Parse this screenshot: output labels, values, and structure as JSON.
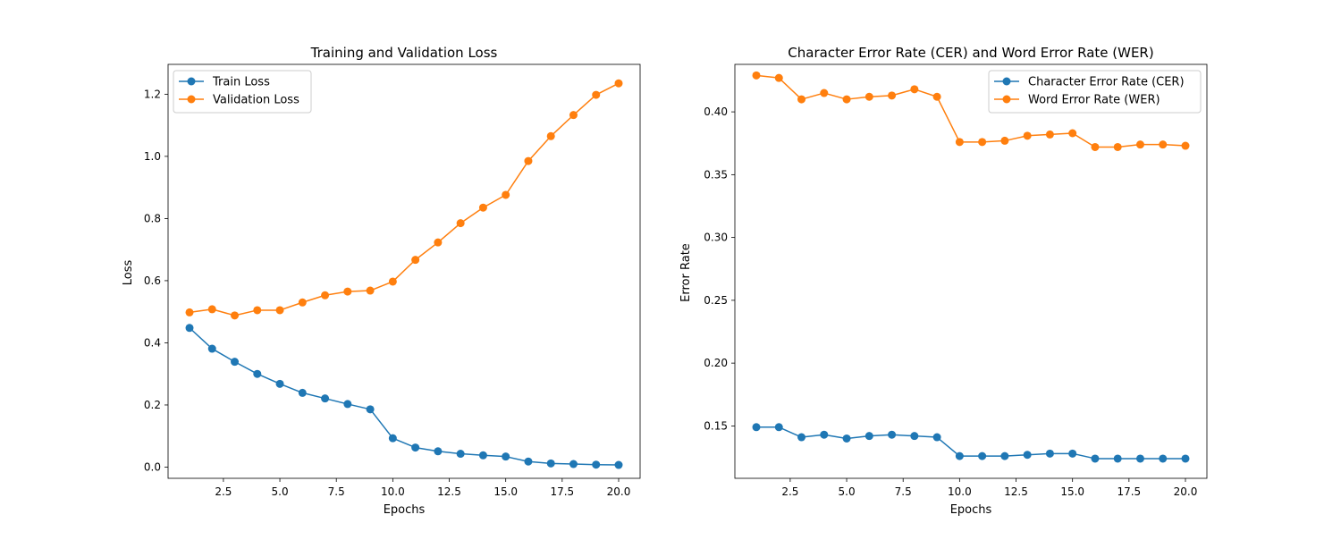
{
  "chart_data": [
    {
      "type": "line",
      "title": "Training and Validation Loss",
      "xlabel": "Epochs",
      "ylabel": "Loss",
      "xlim": [
        0.05,
        20.95
      ],
      "ylim": [
        -0.036,
        1.296
      ],
      "xticks": [
        2.5,
        5.0,
        7.5,
        10.0,
        12.5,
        15.0,
        17.5,
        20.0
      ],
      "xtick_labels": [
        "2.5",
        "5.0",
        "7.5",
        "10.0",
        "12.5",
        "15.0",
        "17.5",
        "20.0"
      ],
      "yticks": [
        0.0,
        0.2,
        0.4,
        0.6,
        0.8,
        1.0,
        1.2
      ],
      "ytick_labels": [
        "0.0",
        "0.2",
        "0.4",
        "0.6",
        "0.8",
        "1.0",
        "1.2"
      ],
      "grid": false,
      "legend_position": "upper-left",
      "x": [
        1,
        2,
        3,
        4,
        5,
        6,
        7,
        8,
        9,
        10,
        11,
        12,
        13,
        14,
        15,
        16,
        17,
        18,
        19,
        20
      ],
      "series": [
        {
          "name": "Train Loss",
          "color": "#1f77b4",
          "values": [
            0.448,
            0.381,
            0.339,
            0.3,
            0.268,
            0.239,
            0.221,
            0.203,
            0.186,
            0.093,
            0.063,
            0.051,
            0.043,
            0.038,
            0.034,
            0.018,
            0.012,
            0.01,
            0.008,
            0.007
          ]
        },
        {
          "name": "Validation Loss",
          "color": "#ff7f0e",
          "values": [
            0.498,
            0.508,
            0.488,
            0.505,
            0.505,
            0.53,
            0.553,
            0.565,
            0.568,
            0.597,
            0.667,
            0.723,
            0.785,
            0.835,
            0.876,
            0.985,
            1.065,
            1.133,
            1.198,
            1.235
          ]
        }
      ]
    },
    {
      "type": "line",
      "title": "Character Error Rate (CER) and Word Error Rate (WER)",
      "xlabel": "Epochs",
      "ylabel": "Error Rate",
      "xlim": [
        0.05,
        20.95
      ],
      "ylim": [
        0.1083,
        0.4378
      ],
      "xticks": [
        2.5,
        5.0,
        7.5,
        10.0,
        12.5,
        15.0,
        17.5,
        20.0
      ],
      "xtick_labels": [
        "2.5",
        "5.0",
        "7.5",
        "10.0",
        "12.5",
        "15.0",
        "17.5",
        "20.0"
      ],
      "yticks": [
        0.15,
        0.2,
        0.25,
        0.3,
        0.35,
        0.4
      ],
      "ytick_labels": [
        "0.15",
        "0.20",
        "0.25",
        "0.30",
        "0.35",
        "0.40"
      ],
      "grid": false,
      "legend_position": "upper-right",
      "x": [
        1,
        2,
        3,
        4,
        5,
        6,
        7,
        8,
        9,
        10,
        11,
        12,
        13,
        14,
        15,
        16,
        17,
        18,
        19,
        20
      ],
      "series": [
        {
          "name": "Character Error Rate (CER)",
          "color": "#1f77b4",
          "values": [
            0.149,
            0.149,
            0.141,
            0.143,
            0.14,
            0.142,
            0.143,
            0.142,
            0.141,
            0.126,
            0.126,
            0.126,
            0.127,
            0.128,
            0.128,
            0.124,
            0.124,
            0.124,
            0.124,
            0.124
          ]
        },
        {
          "name": "Word Error Rate (WER)",
          "color": "#ff7f0e",
          "values": [
            0.429,
            0.427,
            0.41,
            0.415,
            0.41,
            0.412,
            0.413,
            0.418,
            0.412,
            0.376,
            0.376,
            0.377,
            0.381,
            0.382,
            0.383,
            0.372,
            0.372,
            0.374,
            0.374,
            0.373
          ]
        }
      ]
    }
  ]
}
